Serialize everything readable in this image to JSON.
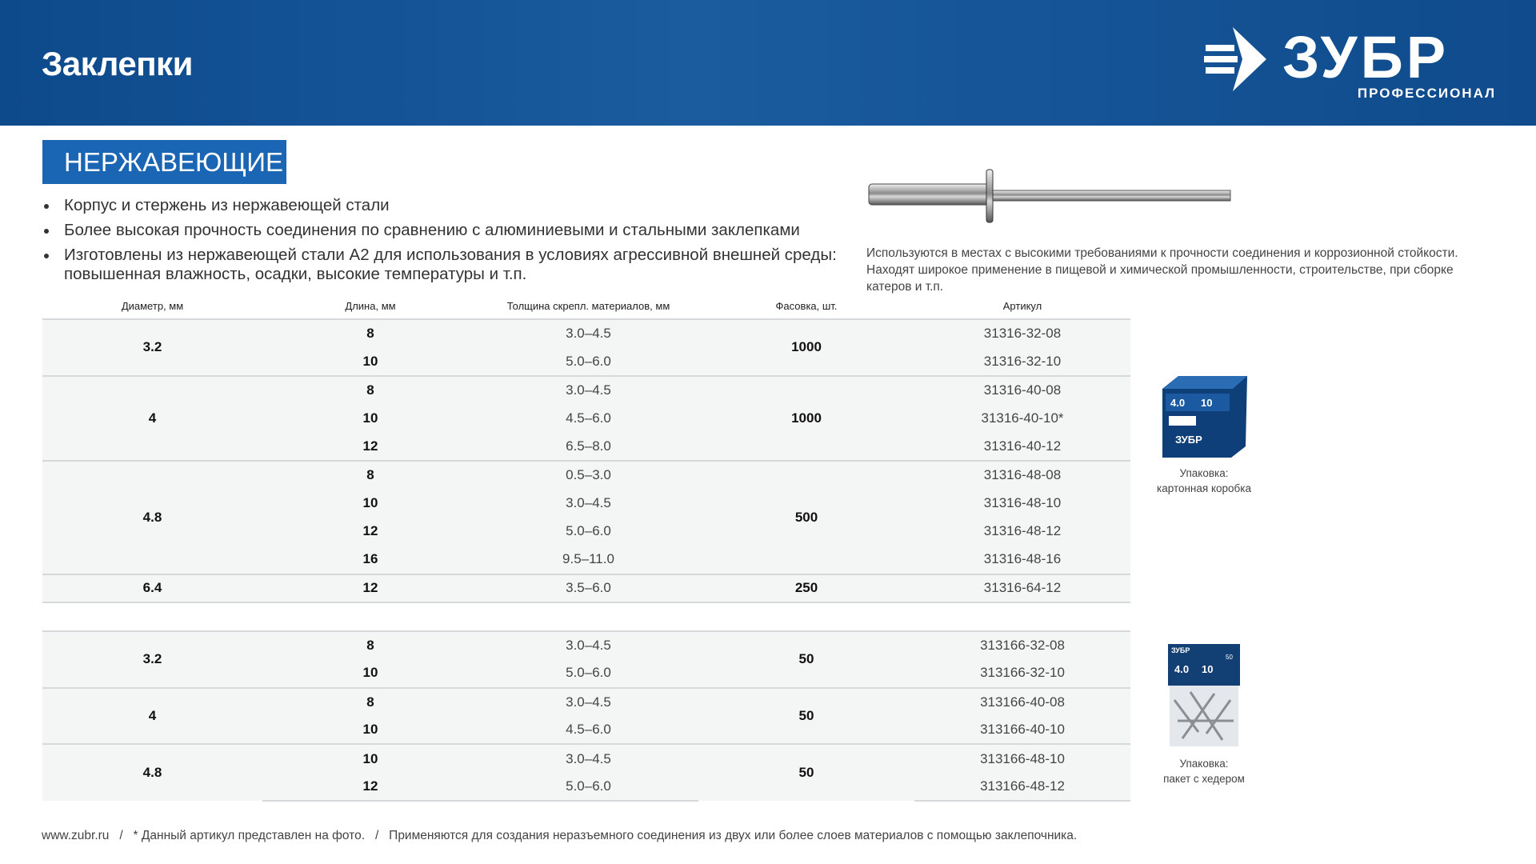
{
  "header": {
    "title": "Заклепки",
    "logo": {
      "word": "ЗУБР",
      "sub": "ПРОФЕССИОНАЛ"
    }
  },
  "badge": "НЕРЖАВЕЮЩИЕ",
  "bullets": [
    "Корпус и стержень из нержавеющей стали",
    "Более высокая прочность соединения по сравнению с алюминиевыми и стальными заклепками",
    "Изготовлены из нержавеющей стали А2 для использования в условиях агрессивной внешней среды: повышенная влажность, осадки, высокие температуры и т.п."
  ],
  "description": "Используются в местах с высокими требованиями к прочности соединения и коррозионной стойкости. Находят широкое применение в пищевой и химической промышленности, строительстве, при сборке катеров и т.п.",
  "table": {
    "headers": [
      "Диаметр, мм",
      "Длина, мм",
      "Толщина скрепл. материалов, мм",
      "Фасовка, шт.",
      "Артикул"
    ],
    "groups": [
      {
        "diameter": "3.2",
        "pack": "1000",
        "rows": [
          [
            "8",
            "3.0–4.5",
            "31316-32-08"
          ],
          [
            "10",
            "5.0–6.0",
            "31316-32-10"
          ]
        ]
      },
      {
        "diameter": "4",
        "pack": "1000",
        "rows": [
          [
            "8",
            "3.0–4.5",
            "31316-40-08"
          ],
          [
            "10",
            "4.5–6.0",
            "31316-40-10*"
          ],
          [
            "12",
            "6.5–8.0",
            "31316-40-12"
          ]
        ]
      },
      {
        "diameter": "4.8",
        "pack": "500",
        "rows": [
          [
            "8",
            "0.5–3.0",
            "31316-48-08"
          ],
          [
            "10",
            "3.0–4.5",
            "31316-48-10"
          ],
          [
            "12",
            "5.0–6.0",
            "31316-48-12"
          ],
          [
            "16",
            "9.5–11.0",
            "31316-48-16"
          ]
        ]
      },
      {
        "diameter": "6.4",
        "pack": "250",
        "rows": [
          [
            "12",
            "3.5–6.0",
            "31316-64-12"
          ]
        ]
      },
      {
        "diameter": "3.2",
        "pack": "50",
        "rows": [
          [
            "8",
            "3.0–4.5",
            "313166-32-08"
          ],
          [
            "10",
            "5.0–6.0",
            "313166-32-10"
          ]
        ]
      },
      {
        "diameter": "4",
        "pack": "50",
        "rows": [
          [
            "8",
            "3.0–4.5",
            "313166-40-08"
          ],
          [
            "10",
            "4.5–6.0",
            "313166-40-10"
          ]
        ]
      },
      {
        "diameter": "4.8",
        "pack": "50",
        "rows": [
          [
            "10",
            "3.0–4.5",
            "313166-48-10"
          ],
          [
            "12",
            "5.0–6.0",
            "313166-48-12"
          ]
        ]
      }
    ]
  },
  "packaging": [
    {
      "label": "Упаковка:",
      "type": "картонная коробка",
      "box_text": [
        "4.0",
        "10",
        "ЗУБР"
      ]
    },
    {
      "label": "Упаковка:",
      "type": "пакет с хедером",
      "box_text": [
        "ЗУБР",
        "4.0",
        "10",
        "50"
      ]
    }
  ],
  "footer": "www.zubr.ru   /   * Данный артикул представлен на фото.   /   Применяются для создания неразъемного соединения из двух или более слоев материалов с помощью заклепочника.",
  "colors": {
    "header": "#0f4b8d",
    "badge": "#1a66b5"
  }
}
